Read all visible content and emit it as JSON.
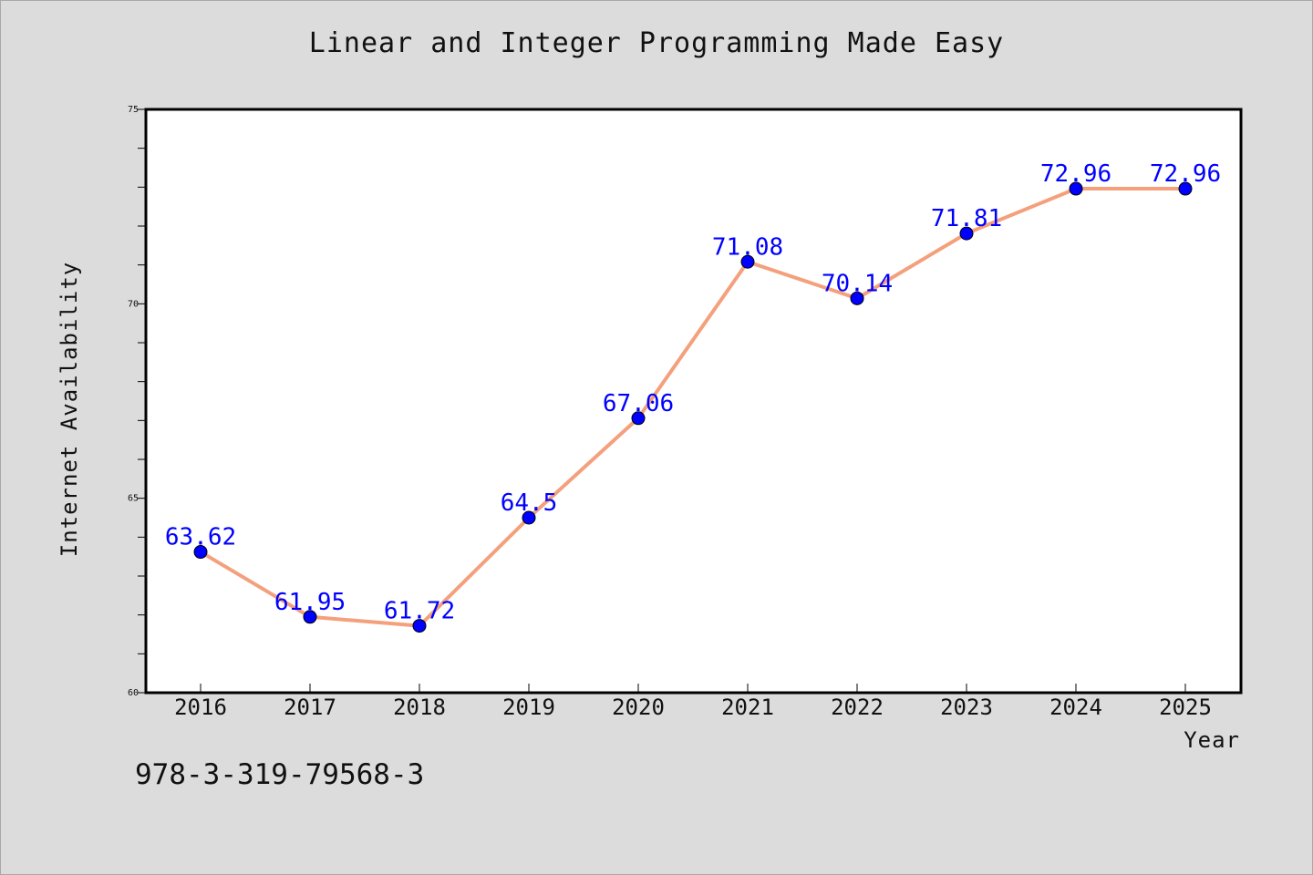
{
  "chart_data": {
    "type": "line",
    "title": "Linear and Integer Programming Made Easy",
    "xlabel": "Year",
    "ylabel": "Internet Availability",
    "categories": [
      "2016",
      "2017",
      "2018",
      "2019",
      "2020",
      "2021",
      "2022",
      "2023",
      "2024",
      "2025"
    ],
    "values": [
      63.62,
      61.95,
      61.72,
      64.5,
      67.06,
      71.08,
      70.14,
      71.81,
      72.96,
      72.96
    ],
    "data_labels": [
      "63.62",
      "61.95",
      "61.72",
      "64.5",
      "67.06",
      "71.08",
      "70.14",
      "71.81",
      "72.96",
      "72.96"
    ],
    "ylim": [
      60,
      75
    ],
    "yticks": [
      "60",
      "65",
      "70",
      "75"
    ],
    "grid": false,
    "line_color": "#f4a07c",
    "marker_color": "#0000ff",
    "label_color": "#0000ff",
    "background_color": "#dcdcdc",
    "plot_background": "#ffffff"
  },
  "footer": {
    "caption": "978-3-319-79568-3"
  }
}
